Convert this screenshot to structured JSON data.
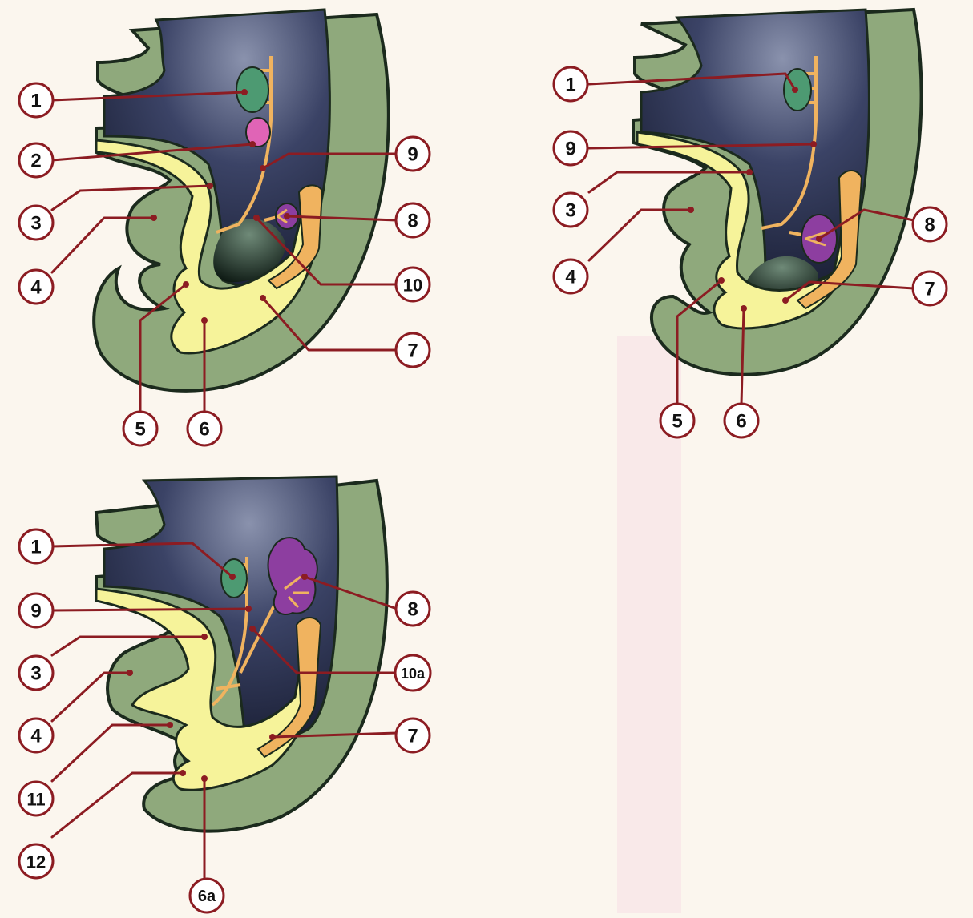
{
  "colors": {
    "background": "#fbf6ee",
    "ectoderm_green": "#8fa97c",
    "outline": "#1b2a1d",
    "cavity_dark": "#1b2036",
    "cavity_light": "#8a92ad",
    "endoderm_yellow": "#f6f39a",
    "duct_orange": "#f0b35f",
    "tissue_green": "#4d9a72",
    "tissue_pink": "#e064b6",
    "tissue_purple": "#8d3ea0",
    "leader_red": "#8c1c22",
    "page_tint": "#f7dfe6"
  },
  "panels": [
    {
      "id": "panel-a",
      "labels": [
        {
          "text": "1"
        },
        {
          "text": "2"
        },
        {
          "text": "3"
        },
        {
          "text": "4"
        },
        {
          "text": "5"
        },
        {
          "text": "6"
        },
        {
          "text": "7"
        },
        {
          "text": "10"
        },
        {
          "text": "8"
        },
        {
          "text": "9"
        }
      ]
    },
    {
      "id": "panel-b",
      "labels": [
        {
          "text": "1"
        },
        {
          "text": "9"
        },
        {
          "text": "3"
        },
        {
          "text": "4"
        },
        {
          "text": "5"
        },
        {
          "text": "6"
        },
        {
          "text": "8"
        },
        {
          "text": "7"
        }
      ]
    },
    {
      "id": "panel-c",
      "labels": [
        {
          "text": "1"
        },
        {
          "text": "9"
        },
        {
          "text": "3"
        },
        {
          "text": "4"
        },
        {
          "text": "11"
        },
        {
          "text": "12"
        },
        {
          "text": "6a"
        },
        {
          "text": "8"
        },
        {
          "text": "10a"
        },
        {
          "text": "7"
        }
      ]
    }
  ]
}
